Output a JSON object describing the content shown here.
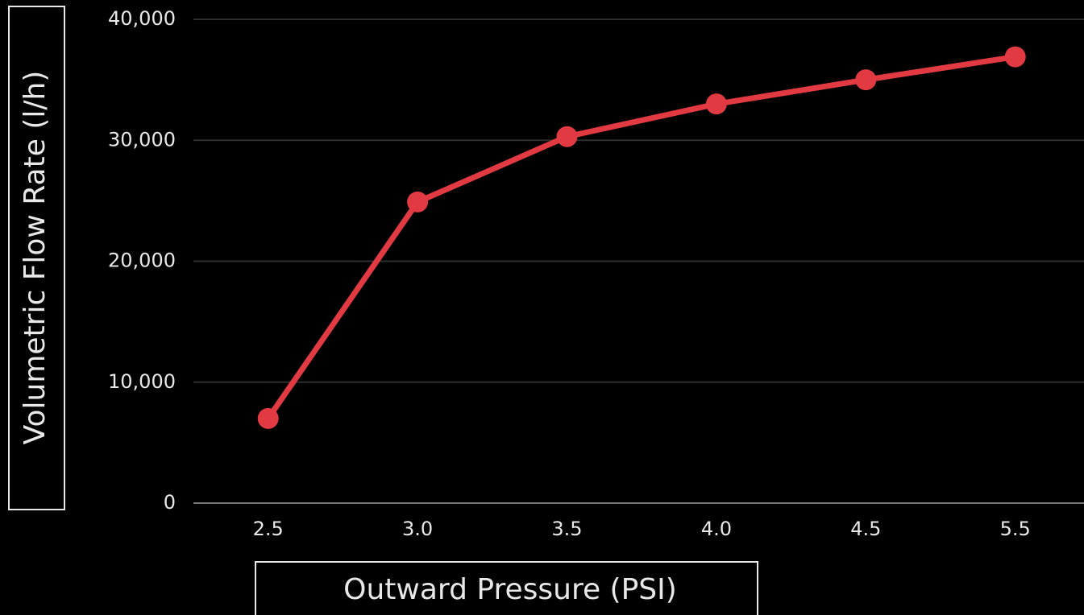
{
  "chart_data": {
    "type": "line",
    "x_label": "Outward Pressure (PSI)",
    "y_label": "Volumetric Flow Rate (l/h)",
    "categories": [
      "2.5",
      "3.0",
      "3.5",
      "4.0",
      "4.5",
      "5.5"
    ],
    "series": [
      {
        "name": "Volumetric Flow Rate",
        "color": "#e23a42",
        "values": [
          7000,
          24900,
          30300,
          33000,
          35000,
          36900
        ]
      }
    ],
    "ylim": [
      0,
      40000
    ],
    "yticks": [
      0,
      {
        "value": 10000,
        "label": "10,000"
      },
      {
        "value": 20000,
        "label": "20,000"
      },
      {
        "value": 30000,
        "label": "30,000"
      },
      {
        "value": 40000,
        "label": "40,000"
      }
    ],
    "grid": true
  }
}
